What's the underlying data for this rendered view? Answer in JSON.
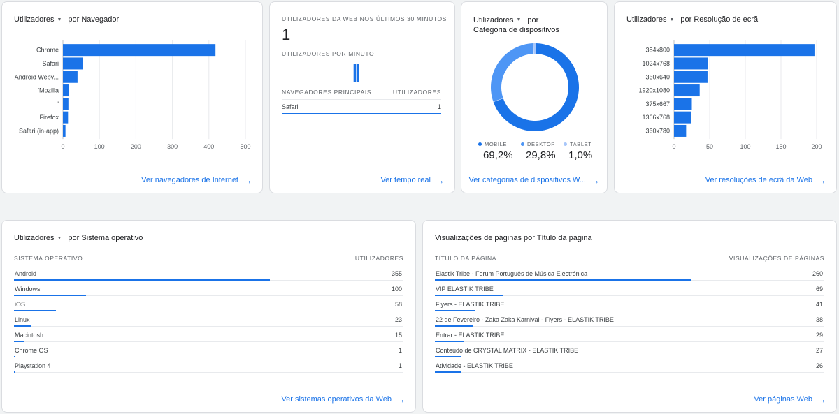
{
  "browser_card": {
    "metric": "Utilizadores",
    "dimension": "por Navegador",
    "link": "Ver navegadores de Internet",
    "chart_data": {
      "type": "bar",
      "orientation": "horizontal",
      "categories": [
        "Chrome",
        "Safari",
        "Android Webv...",
        "'Mozilla",
        "\"",
        "Firefox",
        "Safari (in-app)"
      ],
      "values": [
        418,
        55,
        40,
        17,
        15,
        14,
        7
      ],
      "xlim": [
        0,
        500
      ],
      "xticks": [
        "0",
        "100",
        "200",
        "300",
        "400",
        "500"
      ],
      "color": "#1a73e8"
    }
  },
  "realtime_card": {
    "title": "UTILIZADORES DA WEB NOS ÚLTIMOS 30 MINUTOS",
    "count": "1",
    "per_minute_label": "UTILIZADORES POR MINUTO",
    "per_minute_values": [
      0,
      0,
      0,
      0,
      0,
      0,
      0,
      0,
      0,
      0,
      0,
      0,
      0,
      0,
      0,
      0,
      0,
      0,
      0,
      0,
      0,
      0,
      1,
      1,
      0,
      0,
      0,
      0,
      0,
      0,
      0,
      0,
      0,
      0,
      0,
      0,
      0,
      0,
      0,
      0,
      0,
      0,
      0,
      0,
      0,
      0,
      0,
      0,
      0,
      0
    ],
    "table_header_left": "NAVEGADORES PRINCIPAIS",
    "table_header_right": "UTILIZADORES",
    "rows": [
      {
        "name": "Safari",
        "value": "1"
      }
    ],
    "link": "Ver tempo real"
  },
  "device_card": {
    "metric": "Utilizadores",
    "dimension": "por",
    "dimension_line2": "Categoria de dispositivos",
    "link": "Ver categorias de dispositivos W...",
    "chart_data": {
      "type": "pie",
      "style": "donut",
      "categories": [
        "MOBILE",
        "DESKTOP",
        "TABLET"
      ],
      "values": [
        69.2,
        29.8,
        1.0
      ],
      "labels": [
        "69,2%",
        "29,8%",
        "1,0%"
      ],
      "colors": [
        "#1a73e8",
        "#4e96f5",
        "#a8c7fa"
      ]
    }
  },
  "resolution_card": {
    "metric": "Utilizadores",
    "dimension": "por Resolução de ecrã",
    "link": "Ver resoluções de ecrã da Web",
    "chart_data": {
      "type": "bar",
      "orientation": "horizontal",
      "categories": [
        "384x800",
        "1024x768",
        "360x640",
        "1920x1080",
        "375x667",
        "1366x768",
        "360x780"
      ],
      "values": [
        197,
        48,
        47,
        36,
        25,
        24,
        17
      ],
      "xlim": [
        0,
        200
      ],
      "xticks": [
        "0",
        "50",
        "100",
        "150",
        "200"
      ],
      "color": "#1a73e8"
    }
  },
  "os_card": {
    "metric": "Utilizadores",
    "dimension": "por Sistema operativo",
    "header_left": "SISTEMA OPERATIVO",
    "header_right": "UTILIZADORES",
    "max": 355,
    "rows": [
      {
        "name": "Android",
        "value": "355",
        "n": 355
      },
      {
        "name": "Windows",
        "value": "100",
        "n": 100
      },
      {
        "name": "iOS",
        "value": "58",
        "n": 58
      },
      {
        "name": "Linux",
        "value": "23",
        "n": 23
      },
      {
        "name": "Macintosh",
        "value": "15",
        "n": 15
      },
      {
        "name": "Chrome OS",
        "value": "1",
        "n": 1
      },
      {
        "name": "Playstation 4",
        "value": "1",
        "n": 1
      }
    ],
    "link": "Ver sistemas operativos da Web"
  },
  "pages_card": {
    "title": "Visualizações de páginas por Título da página",
    "header_left": "TÍTULO DA PÁGINA",
    "header_right": "VISUALIZAÇÕES DE PÁGINAS",
    "max": 260,
    "rows": [
      {
        "name": "Elastik Tribe - Forum Português de Música Electrónica",
        "value": "260",
        "n": 260
      },
      {
        "name": "VIP ELASTIK TRIBE",
        "value": "69",
        "n": 69
      },
      {
        "name": "Flyers - ELASTIK TRIBE",
        "value": "41",
        "n": 41
      },
      {
        "name": "22 de Fevereiro - Zaka Zaka Karnival - Flyers - ELASTIK TRIBE",
        "value": "38",
        "n": 38
      },
      {
        "name": "Entrar - ELASTIK TRIBE",
        "value": "29",
        "n": 29
      },
      {
        "name": "Conteúdo de CRYSTAL MATRIX - ELASTIK TRIBE",
        "value": "27",
        "n": 27
      },
      {
        "name": "Atividade - ELASTIK TRIBE",
        "value": "26",
        "n": 26
      }
    ],
    "link": "Ver páginas Web"
  }
}
